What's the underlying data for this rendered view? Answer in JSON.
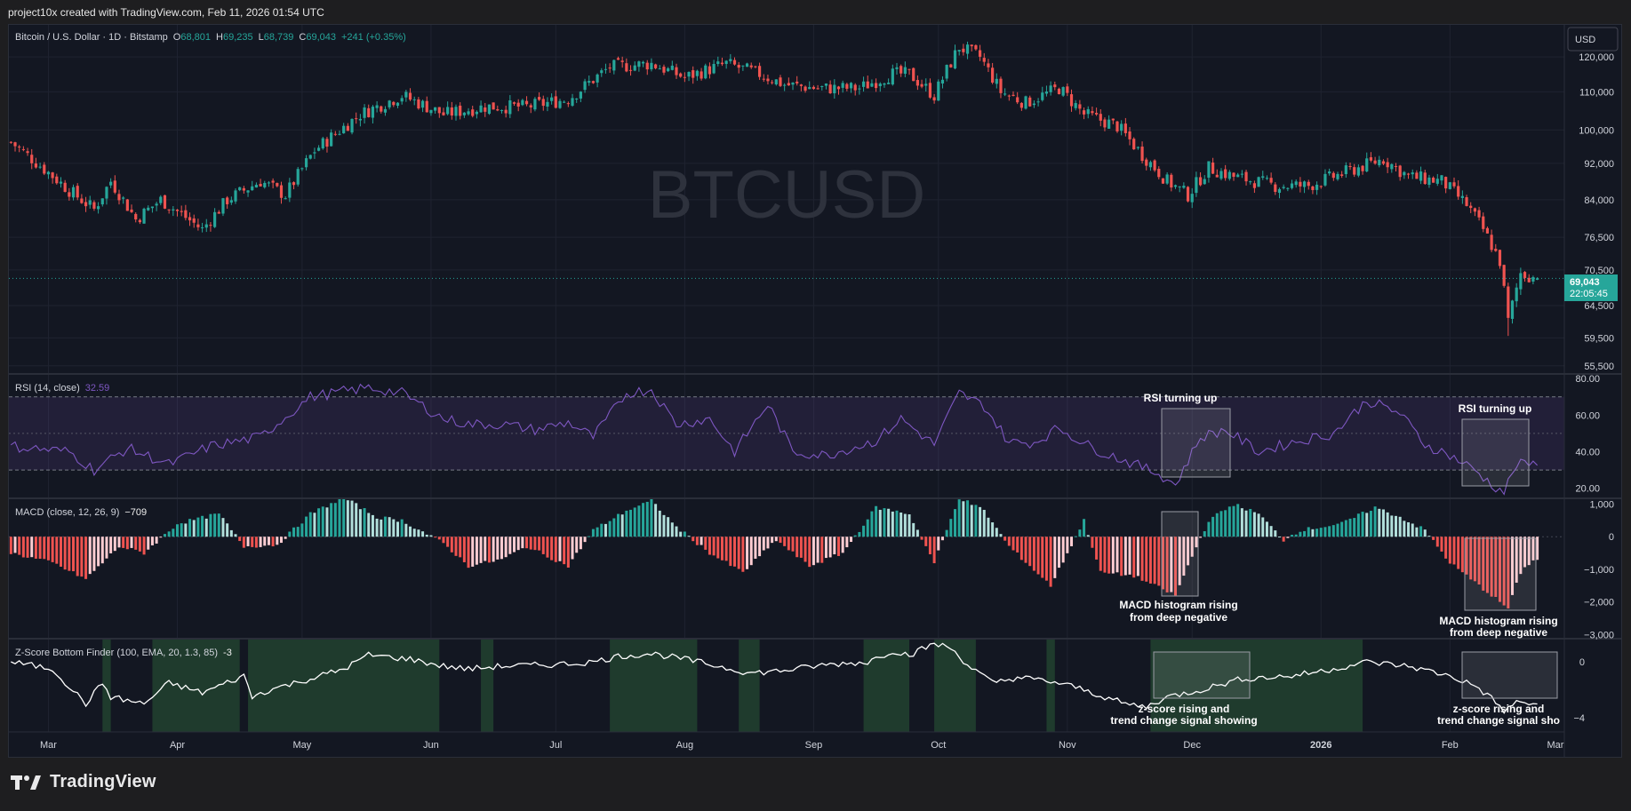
{
  "header": {
    "attribution": "project10x created with TradingView.com, Feb 11, 2026 01:54 UTC"
  },
  "brand": {
    "name": "TradingView",
    "icon": "tradingview-logo-icon"
  },
  "colors": {
    "up": "#26a69a",
    "down": "#ef5350",
    "rsi": "#7e57c2",
    "macd_light_up": "#b2dfdb",
    "macd_light_down": "#ffcdd2",
    "zfill": "#1f3b2d"
  },
  "main_pane": {
    "legend_symbol": "Bitcoin / U.S. Dollar · 1D · Bitstamp",
    "ohlc": {
      "o_label": "O",
      "o": "68,801",
      "h_label": "H",
      "h": "69,235",
      "l_label": "L",
      "l": "68,739",
      "c_label": "C",
      "c": "69,043",
      "chg": "+241 (+0.35%)"
    },
    "watermark": "BTCUSD",
    "currency_button": "USD",
    "price_tag": "69,043",
    "countdown": "22:05:45"
  },
  "rsi_pane": {
    "legend": "RSI (14, close)",
    "value": "32.59",
    "annotations": [
      "RSI turning up",
      "RSI turning up"
    ]
  },
  "macd_pane": {
    "legend": "MACD (close, 12, 26, 9)",
    "value": "−709",
    "annotations": [
      "MACD histogram rising",
      "from deep negative",
      "MACD histogram rising",
      "from deep negative"
    ]
  },
  "z_pane": {
    "legend": "Z-Score Bottom Finder (100, EMA, 20, 1.3, 85)",
    "value": "-3",
    "annotations": [
      "z-score rising and",
      "trend change signal showing",
      "z-score rising and",
      "trend change signal sho"
    ]
  },
  "chart_data": [
    {
      "type": "candlestick",
      "title": "Bitcoin / U.S. Dollar · 1D · Bitstamp",
      "x_range": [
        "2025-02-20",
        "2026-02-11"
      ],
      "x_tick_labels": [
        "Mar",
        "Apr",
        "May",
        "Jun",
        "Jul",
        "Aug",
        "Sep",
        "Oct",
        "Nov",
        "Dec",
        "2026",
        "Feb",
        "Mar"
      ],
      "y_scale": "log",
      "y_tick_labels": [
        "120,000",
        "110,000",
        "100,000",
        "92,000",
        "84,000",
        "76,500",
        "70,500",
        "64,500",
        "59,500",
        "55,500"
      ],
      "ylim": [
        54500,
        130000
      ],
      "close_path": [
        [
          0,
          97000
        ],
        [
          14,
          86000
        ],
        [
          20,
          82000
        ],
        [
          24,
          88000
        ],
        [
          30,
          80000
        ],
        [
          36,
          84000
        ],
        [
          46,
          78000
        ],
        [
          52,
          84000
        ],
        [
          60,
          88000
        ],
        [
          66,
          85000
        ],
        [
          73,
          95000
        ],
        [
          84,
          104000
        ],
        [
          94,
          109000
        ],
        [
          104,
          104000
        ],
        [
          114,
          106000
        ],
        [
          124,
          106000
        ],
        [
          134,
          108000
        ],
        [
          144,
          117000
        ],
        [
          154,
          118000
        ],
        [
          162,
          114000
        ],
        [
          172,
          118000
        ],
        [
          180,
          115000
        ],
        [
          186,
          112000
        ],
        [
          194,
          111000
        ],
        [
          204,
          111000
        ],
        [
          212,
          115000
        ],
        [
          216,
          115000
        ],
        [
          222,
          109000
        ],
        [
          228,
          123000
        ],
        [
          233,
          120000
        ],
        [
          238,
          110000
        ],
        [
          244,
          107000
        ],
        [
          252,
          111000
        ],
        [
          258,
          104000
        ],
        [
          266,
          101000
        ],
        [
          272,
          94000
        ],
        [
          278,
          88000
        ],
        [
          283,
          85000
        ],
        [
          288,
          91000
        ],
        [
          294,
          89000
        ],
        [
          304,
          87000
        ],
        [
          312,
          87000
        ],
        [
          318,
          89000
        ],
        [
          324,
          91000
        ],
        [
          330,
          93000
        ],
        [
          336,
          89000
        ],
        [
          344,
          88000
        ],
        [
          350,
          83000
        ],
        [
          354,
          78000
        ],
        [
          358,
          72000
        ],
        [
          360,
          62000
        ],
        [
          363,
          70000
        ],
        [
          367,
          69000
        ]
      ],
      "last": {
        "open": 68801,
        "high": 69235,
        "low": 68739,
        "close": 69043,
        "change": 241,
        "change_pct": 0.35
      }
    },
    {
      "type": "line",
      "title": "RSI (14, close)",
      "y_tick_labels": [
        "80.00",
        "60.00",
        "40.00",
        "20.00"
      ],
      "ylim": [
        15,
        82
      ],
      "band": [
        30,
        70
      ],
      "mid": 50,
      "last_value": 32.59,
      "path": [
        [
          0,
          43
        ],
        [
          14,
          40
        ],
        [
          20,
          30
        ],
        [
          28,
          42
        ],
        [
          38,
          33
        ],
        [
          48,
          43
        ],
        [
          60,
          48
        ],
        [
          72,
          70
        ],
        [
          86,
          75
        ],
        [
          94,
          72
        ],
        [
          104,
          58
        ],
        [
          110,
          55
        ],
        [
          118,
          55
        ],
        [
          126,
          52
        ],
        [
          134,
          56
        ],
        [
          140,
          48
        ],
        [
          148,
          72
        ],
        [
          154,
          74
        ],
        [
          160,
          55
        ],
        [
          168,
          58
        ],
        [
          174,
          40
        ],
        [
          182,
          66
        ],
        [
          188,
          40
        ],
        [
          196,
          38
        ],
        [
          208,
          46
        ],
        [
          214,
          58
        ],
        [
          222,
          44
        ],
        [
          228,
          72
        ],
        [
          234,
          65
        ],
        [
          240,
          45
        ],
        [
          246,
          45
        ],
        [
          252,
          53
        ],
        [
          260,
          42
        ],
        [
          268,
          35
        ],
        [
          276,
          28
        ],
        [
          280,
          22
        ],
        [
          286,
          48
        ],
        [
          292,
          52
        ],
        [
          300,
          40
        ],
        [
          308,
          45
        ],
        [
          318,
          50
        ],
        [
          326,
          68
        ],
        [
          334,
          61
        ],
        [
          340,
          44
        ],
        [
          346,
          38
        ],
        [
          352,
          30
        ],
        [
          356,
          22
        ],
        [
          359,
          18
        ],
        [
          362,
          33
        ],
        [
          367,
          33
        ]
      ]
    },
    {
      "type": "bar",
      "title": "MACD (close, 12, 26, 9)",
      "y_tick_labels": [
        "1,000",
        "0",
        "−1,000",
        "−2,000",
        "−3,000"
      ],
      "ylim": [
        -3100,
        1150
      ],
      "last_value": -709,
      "histogram_path": [
        [
          0,
          -500
        ],
        [
          10,
          -800
        ],
        [
          18,
          -1300
        ],
        [
          26,
          -300
        ],
        [
          32,
          -500
        ],
        [
          40,
          400
        ],
        [
          50,
          700
        ],
        [
          56,
          -300
        ],
        [
          64,
          -250
        ],
        [
          72,
          700
        ],
        [
          80,
          1200
        ],
        [
          88,
          600
        ],
        [
          94,
          500
        ],
        [
          104,
          -200
        ],
        [
          110,
          -900
        ],
        [
          118,
          -700
        ],
        [
          124,
          -300
        ],
        [
          134,
          -900
        ],
        [
          140,
          200
        ],
        [
          148,
          800
        ],
        [
          154,
          1100
        ],
        [
          160,
          300
        ],
        [
          168,
          -500
        ],
        [
          176,
          -1100
        ],
        [
          184,
          -100
        ],
        [
          192,
          -900
        ],
        [
          200,
          -500
        ],
        [
          208,
          900
        ],
        [
          216,
          700
        ],
        [
          222,
          -800
        ],
        [
          228,
          1200
        ],
        [
          234,
          800
        ],
        [
          240,
          -300
        ],
        [
          250,
          -1500
        ],
        [
          258,
          500
        ],
        [
          262,
          -1100
        ],
        [
          270,
          -1200
        ],
        [
          280,
          -1800
        ],
        [
          284,
          -600
        ],
        [
          288,
          500
        ],
        [
          294,
          1000
        ],
        [
          300,
          700
        ],
        [
          306,
          -100
        ],
        [
          310,
          200
        ],
        [
          320,
          400
        ],
        [
          328,
          900
        ],
        [
          334,
          600
        ],
        [
          340,
          200
        ],
        [
          346,
          -800
        ],
        [
          352,
          -1400
        ],
        [
          356,
          -1800
        ],
        [
          360,
          -2200
        ],
        [
          363,
          -1100
        ],
        [
          366,
          -700
        ],
        [
          367,
          -709
        ]
      ]
    },
    {
      "type": "line",
      "title": "Z-Score Bottom Finder (100, EMA, 20, 1.3, 85)",
      "y_tick_labels": [
        "0",
        "−4"
      ],
      "ylim": [
        -5.0,
        1.6
      ],
      "last_value": -3,
      "signal_zones": [
        [
          22,
          24
        ],
        [
          34,
          55
        ],
        [
          57,
          103
        ],
        [
          113,
          116
        ],
        [
          144,
          165
        ],
        [
          175,
          180
        ],
        [
          205,
          216
        ],
        [
          222,
          232
        ],
        [
          249,
          251
        ],
        [
          274,
          325
        ]
      ],
      "path": [
        [
          0,
          0
        ],
        [
          10,
          -0.5
        ],
        [
          18,
          -3
        ],
        [
          22,
          -1.5
        ],
        [
          24,
          -2.5
        ],
        [
          32,
          -3
        ],
        [
          38,
          -1.5
        ],
        [
          46,
          -2.2
        ],
        [
          56,
          -1
        ],
        [
          58,
          -2.5
        ],
        [
          62,
          -2
        ],
        [
          72,
          -1.2
        ],
        [
          80,
          -0.5
        ],
        [
          86,
          0.5
        ],
        [
          96,
          0.2
        ],
        [
          104,
          -0.3
        ],
        [
          110,
          -0.5
        ],
        [
          118,
          -0.3
        ],
        [
          130,
          -0.2
        ],
        [
          140,
          0
        ],
        [
          146,
          0.4
        ],
        [
          154,
          0.6
        ],
        [
          162,
          0.2
        ],
        [
          170,
          -0.3
        ],
        [
          178,
          -0.8
        ],
        [
          186,
          -0.6
        ],
        [
          196,
          -0.2
        ],
        [
          206,
          0
        ],
        [
          212,
          0.8
        ],
        [
          216,
          0.5
        ],
        [
          222,
          1.3
        ],
        [
          226,
          1
        ],
        [
          230,
          -0.2
        ],
        [
          236,
          -1.5
        ],
        [
          242,
          -1.1
        ],
        [
          250,
          -1.4
        ],
        [
          256,
          -1.8
        ],
        [
          262,
          -2.4
        ],
        [
          268,
          -3.0
        ],
        [
          273,
          -3.2
        ],
        [
          278,
          -2.5
        ],
        [
          286,
          -2
        ],
        [
          296,
          -1.2
        ],
        [
          308,
          -1
        ],
        [
          318,
          -0.5
        ],
        [
          326,
          0
        ],
        [
          336,
          -0.3
        ],
        [
          346,
          -1
        ],
        [
          352,
          -1.7
        ],
        [
          356,
          -2.6
        ],
        [
          359,
          -3.5
        ],
        [
          362,
          -2.9
        ],
        [
          367,
          -3.0
        ]
      ]
    }
  ]
}
